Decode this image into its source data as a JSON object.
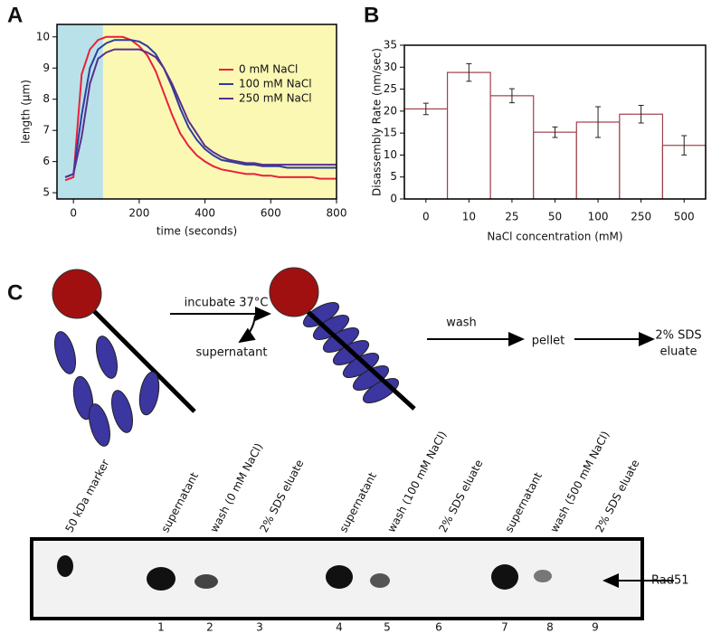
{
  "panels": [
    "A",
    "B",
    "C"
  ],
  "chart_data": [
    {
      "type": "line",
      "x_label": "time (seconds)",
      "y_label": "length (µm)",
      "xlim": [
        -50,
        800
      ],
      "ylim": [
        4.8,
        10.4
      ],
      "xticks": [
        0,
        200,
        400,
        600,
        800
      ],
      "yticks": [
        5,
        6,
        7,
        8,
        9,
        10
      ],
      "legend": "upper right",
      "shaded_spans": [
        {
          "xlim": [
            -50,
            90
          ],
          "color": "#b9e1ea"
        },
        {
          "xlim": [
            90,
            800
          ],
          "color": "#fbf8b4"
        }
      ],
      "x": [
        -25,
        0,
        25,
        50,
        75,
        100,
        125,
        150,
        175,
        200,
        225,
        250,
        275,
        300,
        325,
        350,
        375,
        400,
        425,
        450,
        475,
        500,
        525,
        550,
        575,
        600,
        625,
        650,
        675,
        700,
        725,
        750,
        775,
        800
      ],
      "series": [
        {
          "name": "0 mM NaCl",
          "color": "#e8213a",
          "values": [
            5.4,
            5.5,
            8.8,
            9.6,
            9.9,
            10.0,
            10.0,
            10.0,
            9.9,
            9.7,
            9.4,
            8.9,
            8.2,
            7.5,
            6.9,
            6.5,
            6.2,
            6.0,
            5.85,
            5.75,
            5.7,
            5.65,
            5.6,
            5.6,
            5.55,
            5.55,
            5.5,
            5.5,
            5.5,
            5.5,
            5.5,
            5.45,
            5.45,
            5.45
          ]
        },
        {
          "name": "100 mM NaCl",
          "color": "#2a3f9e",
          "values": [
            5.5,
            5.6,
            7.5,
            9.0,
            9.6,
            9.8,
            9.9,
            9.9,
            9.9,
            9.85,
            9.7,
            9.45,
            9.0,
            8.4,
            7.7,
            7.1,
            6.7,
            6.4,
            6.2,
            6.05,
            6.0,
            5.95,
            5.9,
            5.9,
            5.85,
            5.85,
            5.85,
            5.8,
            5.8,
            5.8,
            5.8,
            5.8,
            5.8,
            5.8
          ]
        },
        {
          "name": "250 mM NaCl",
          "color": "#5b2d8e",
          "values": [
            5.5,
            5.6,
            6.8,
            8.5,
            9.3,
            9.5,
            9.6,
            9.6,
            9.6,
            9.6,
            9.5,
            9.35,
            9.0,
            8.5,
            7.9,
            7.3,
            6.9,
            6.5,
            6.3,
            6.15,
            6.05,
            6.0,
            5.95,
            5.95,
            5.9,
            5.9,
            5.9,
            5.9,
            5.9,
            5.9,
            5.9,
            5.9,
            5.9,
            5.9
          ]
        }
      ]
    },
    {
      "type": "bar",
      "x_label": "NaCl concentration (mM)",
      "y_label": "Disassembly Rate (nm/sec)",
      "categories": [
        "0",
        "10",
        "25",
        "50",
        "100",
        "250",
        "500"
      ],
      "values": [
        20.5,
        28.8,
        23.5,
        15.2,
        17.5,
        19.3,
        12.2
      ],
      "errors": [
        1.3,
        2.0,
        1.6,
        1.2,
        3.5,
        2.0,
        2.2
      ],
      "color": "#a0404a",
      "ylim": [
        0,
        35
      ],
      "yticks": [
        0,
        5,
        10,
        15,
        20,
        25,
        30,
        35
      ]
    }
  ],
  "diagram": {
    "step1": "incubate 37°C",
    "side": "supernatant",
    "step2": "wash",
    "step3": "pellet",
    "step4": [
      "2% SDS",
      "eluate"
    ]
  },
  "gel": {
    "lane_labels": [
      "50 kDa marker",
      "supernatant",
      "wash (0 mM NaCl)",
      "2% SDS eluate",
      "supernatant",
      "wash (100 mM NaCl)",
      "2% SDS eluate",
      "supernatant",
      "wash (500 mM NaCl)",
      "2% SDS eluate"
    ],
    "lane_numbers": [
      "1",
      "2",
      "3",
      "4",
      "5",
      "6",
      "7",
      "8",
      "9"
    ],
    "band_label": "Rad51"
  }
}
